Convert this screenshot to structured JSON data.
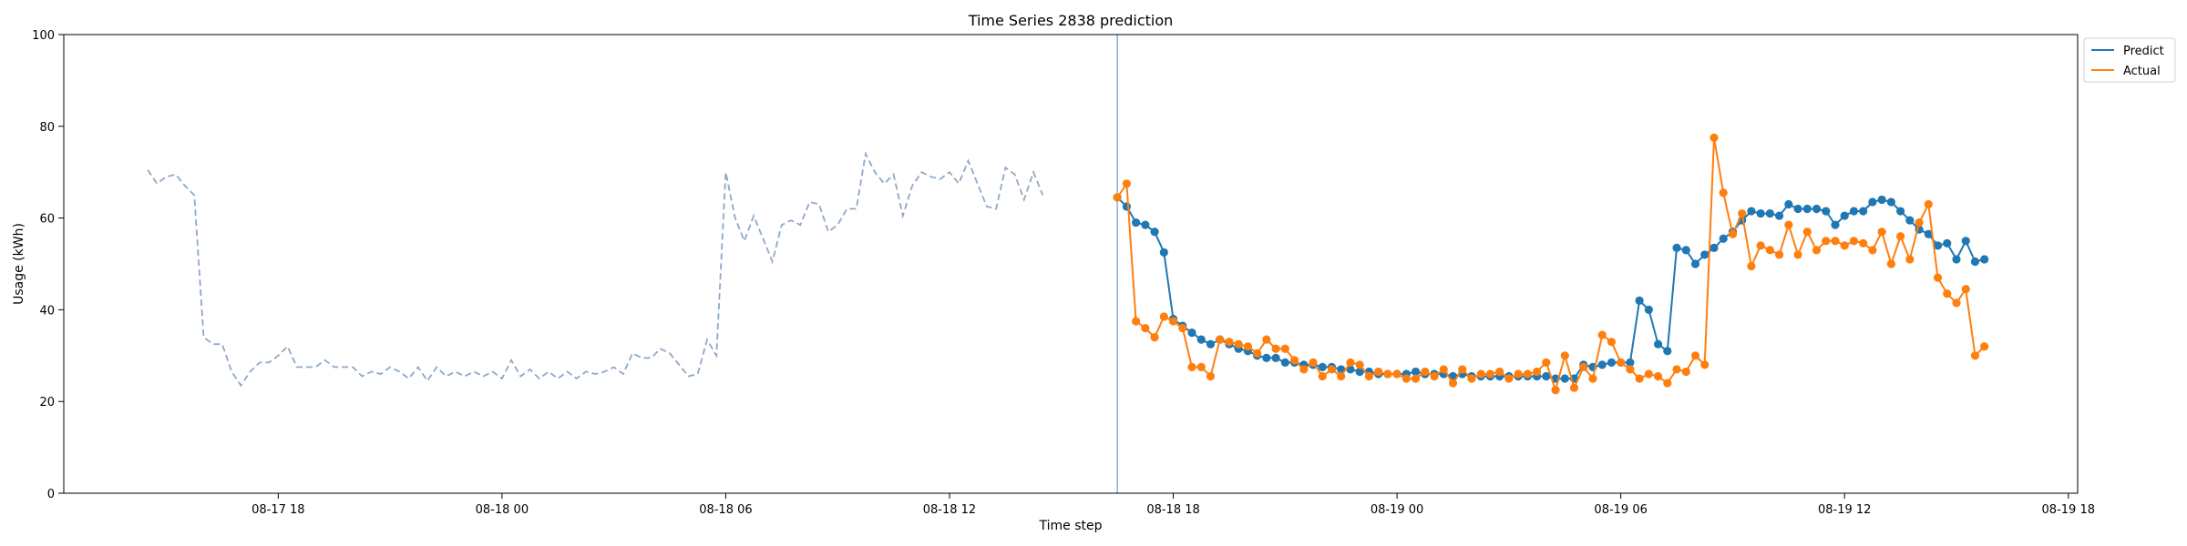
{
  "chart_data": {
    "type": "line",
    "title": "Time Series 2838 prediction",
    "xlabel": "Time step",
    "ylabel": "Usage (kWh)",
    "ylim": [
      0,
      100
    ],
    "yticks": [
      0,
      20,
      40,
      60,
      80,
      100
    ],
    "xlim": [
      "08-17 12:15",
      "08-19 18:15"
    ],
    "xticks": [
      {
        "t": "08-17 18:00",
        "label": "08-17 18"
      },
      {
        "t": "08-18 00:00",
        "label": "08-18 00"
      },
      {
        "t": "08-18 06:00",
        "label": "08-18 06"
      },
      {
        "t": "08-18 12:00",
        "label": "08-18 12"
      },
      {
        "t": "08-18 18:00",
        "label": "08-18 18"
      },
      {
        "t": "08-19 00:00",
        "label": "08-19 00"
      },
      {
        "t": "08-19 06:00",
        "label": "08-19 06"
      },
      {
        "t": "08-19 12:00",
        "label": "08-19 12"
      },
      {
        "t": "08-19 18:00",
        "label": "08-19 18"
      }
    ],
    "legend_position": "top-right",
    "split_time": "08-18 16:30",
    "colors": {
      "history": "#8fa8c8",
      "predict": "#1f77b4",
      "actual": "#ff7f0e",
      "split": "#8fa8d8"
    },
    "series": [
      {
        "role": "history",
        "start": "08-17 14:30",
        "step_minutes": 15,
        "values": [
          70.5,
          67.5,
          69,
          69.5,
          67,
          65,
          34,
          32.5,
          32.5,
          26.5,
          23.5,
          26.5,
          28.5,
          28.5,
          30,
          32,
          27.5,
          27.5,
          27.5,
          29,
          27.5,
          27.5,
          27.5,
          25.5,
          26.5,
          26,
          27.5,
          26.5,
          25,
          27.5,
          24.5,
          27.5,
          25.5,
          26.5,
          25.5,
          26.5,
          25.5,
          26.5,
          25,
          29,
          25.5,
          27,
          25,
          26.5,
          25,
          26.5,
          25,
          26.5,
          26,
          26.5,
          27.5,
          26,
          30.5,
          29.5,
          29.5,
          31.5,
          30.5,
          28,
          25.5,
          26,
          33.5,
          30,
          70,
          60,
          55,
          60.5,
          55.5,
          50.5,
          58.5,
          59.5,
          58.5,
          63.5,
          63,
          57,
          58.5,
          62,
          62,
          74,
          70,
          67.5,
          69.5,
          60.5,
          67,
          70,
          69,
          68.5,
          70,
          67.5,
          72.5,
          67.5,
          62.5,
          62,
          71,
          69.5,
          64,
          70,
          65
        ]
      },
      {
        "name": "Predict",
        "start": "08-18 16:30",
        "step_minutes": 15,
        "values": [
          64.5,
          62.5,
          59,
          58.5,
          57,
          52.5,
          38,
          36.5,
          35,
          33.5,
          32.5,
          33.5,
          32.5,
          31.5,
          31,
          30,
          29.5,
          29.5,
          28.5,
          28.5,
          28,
          28,
          27.5,
          27.5,
          27,
          27,
          26.5,
          26.5,
          26,
          26,
          26,
          26,
          26.5,
          26,
          26,
          26,
          25.5,
          26,
          25.5,
          25.5,
          25.5,
          25.5,
          25.5,
          25.5,
          25.5,
          25.5,
          25.5,
          25,
          25,
          25,
          28,
          27.5,
          28,
          28.5,
          28.5,
          28.5,
          42,
          40,
          32.5,
          31,
          53.5,
          53,
          50,
          52,
          53.5,
          55.5,
          57,
          59.5,
          61.5,
          61,
          61,
          60.5,
          63,
          62,
          62,
          62,
          61.5,
          58.5,
          60.5,
          61.5,
          61.5,
          63.5,
          64,
          63.5,
          61.5,
          59.5,
          57.5,
          56.5,
          54,
          54.5,
          51,
          55,
          50.5,
          51
        ]
      },
      {
        "name": "Actual",
        "start": "08-18 16:30",
        "step_minutes": 15,
        "values": [
          64.5,
          67.5,
          37.5,
          36,
          34,
          38.5,
          37.5,
          36,
          27.5,
          27.5,
          25.5,
          33.5,
          33,
          32.5,
          32,
          30.5,
          33.5,
          31.5,
          31.5,
          29,
          27,
          28.5,
          25.5,
          27,
          25.5,
          28.5,
          28,
          25.5,
          26.5,
          26,
          26,
          25,
          25,
          26.5,
          25.5,
          27,
          24,
          27,
          25,
          26,
          26,
          26.5,
          25,
          26,
          26,
          26.5,
          28.5,
          22.5,
          30,
          23,
          27.5,
          25,
          34.5,
          33,
          28.5,
          27,
          25,
          26,
          25.5,
          24,
          27,
          26.5,
          30,
          28,
          77.5,
          65.5,
          56.5,
          61,
          49.5,
          54,
          53,
          52,
          58.5,
          52,
          57,
          53,
          55,
          55,
          54,
          55,
          54.5,
          53,
          57,
          50,
          56,
          51,
          59,
          63,
          47,
          43.5,
          41.5,
          44.5,
          30,
          32
        ]
      }
    ]
  }
}
